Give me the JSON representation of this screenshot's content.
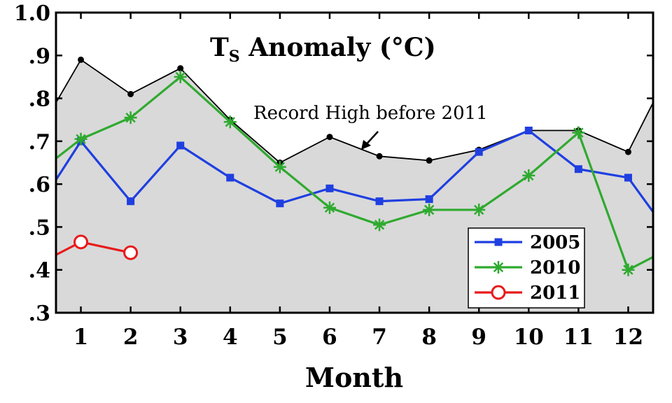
{
  "chart_data": {
    "type": "line",
    "title": "Ts Anomaly (°C)",
    "title_main": "T",
    "title_sub": "S",
    "title_rest": " Anomaly (°C)",
    "xlabel": "Month",
    "ylabel": "",
    "xlim": [
      0.5,
      12.5
    ],
    "ylim": [
      0.3,
      1.0
    ],
    "xticks": [
      1,
      2,
      3,
      4,
      5,
      6,
      7,
      8,
      9,
      10,
      11,
      12
    ],
    "xtick_labels": [
      "1",
      "2",
      "3",
      "4",
      "5",
      "6",
      "7",
      "8",
      "9",
      "10",
      "11",
      "12"
    ],
    "yticks": [
      0.3,
      0.4,
      0.5,
      0.6,
      0.7,
      0.8,
      0.9,
      1.0
    ],
    "ytick_labels": [
      ".3",
      ".4",
      ".5",
      ".6",
      ".7",
      ".8",
      ".9",
      "1.0"
    ],
    "grid": false,
    "legend_position": "bottom-right",
    "record_high": {
      "label": "Record High before 2011",
      "color": "#000000",
      "fill_color": "#d9d9d9",
      "x": [
        0.5,
        1,
        2,
        3,
        4,
        5,
        6,
        7,
        8,
        9,
        10,
        11,
        12,
        12.5
      ],
      "values": [
        0.79,
        0.89,
        0.81,
        0.87,
        0.75,
        0.65,
        0.71,
        0.665,
        0.655,
        0.68,
        0.725,
        0.725,
        0.675,
        0.79
      ],
      "annotation_target_x": 6.7,
      "annotation_target_y": 0.675
    },
    "series": [
      {
        "name": "2005",
        "color": "#1f3fe0",
        "marker": "square",
        "x": [
          0.5,
          1,
          2,
          3,
          4,
          5,
          6,
          7,
          8,
          9,
          10,
          11,
          12,
          12.5
        ],
        "values": [
          0.61,
          0.7,
          0.56,
          0.69,
          0.615,
          0.555,
          0.59,
          0.56,
          0.565,
          0.675,
          0.725,
          0.635,
          0.615,
          0.535
        ]
      },
      {
        "name": "2010",
        "color": "#2faa2f",
        "marker": "star",
        "x": [
          0.5,
          1,
          2,
          3,
          4,
          5,
          6,
          7,
          8,
          9,
          10,
          11,
          12,
          12.5
        ],
        "values": [
          0.66,
          0.705,
          0.755,
          0.85,
          0.745,
          0.64,
          0.545,
          0.505,
          0.54,
          0.54,
          0.62,
          0.72,
          0.4,
          0.43
        ]
      },
      {
        "name": "2011",
        "color": "#e81a1a",
        "marker": "circle",
        "x": [
          0.5,
          1,
          2
        ],
        "values": [
          0.435,
          0.465,
          0.44
        ]
      }
    ]
  }
}
